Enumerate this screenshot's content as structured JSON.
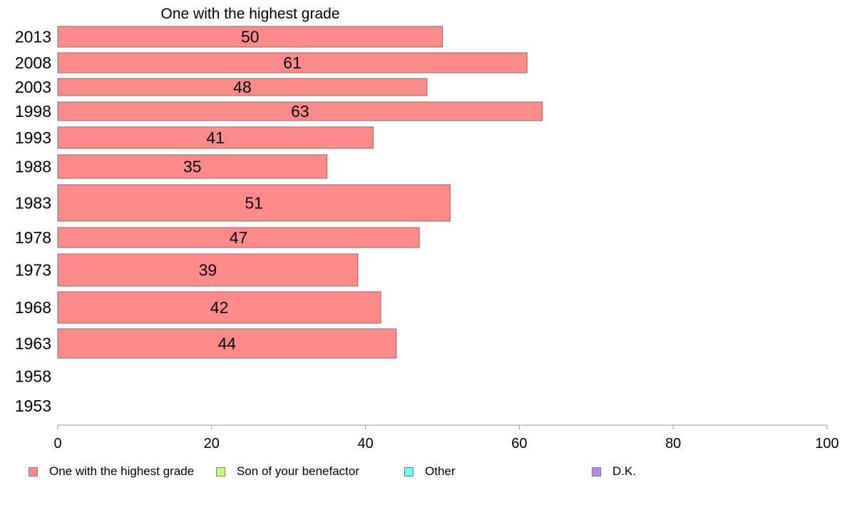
{
  "chart_data": {
    "type": "bar",
    "orientation": "horizontal",
    "series_title": "One with the highest grade",
    "categories": [
      "2013",
      "2008",
      "2003",
      "1998",
      "1993",
      "1988",
      "1983",
      "1978",
      "1973",
      "1968",
      "1963",
      "1958",
      "1953"
    ],
    "series": [
      {
        "name": "One with the highest grade",
        "color": "#ff8a8a",
        "values": [
          50,
          61,
          48,
          63,
          41,
          35,
          51,
          47,
          39,
          42,
          44,
          null,
          null
        ]
      }
    ],
    "xlim": [
      0,
      100
    ],
    "xticks": [
      "0",
      "20",
      "40",
      "60",
      "80",
      "100"
    ],
    "grid": false,
    "legend_position": "bottom",
    "legend": [
      {
        "label": "One with the highest grade",
        "color": "#ff8a8a"
      },
      {
        "label": "Son of your benefactor",
        "color": "#c6fa7c"
      },
      {
        "label": "Other",
        "color": "#7cf6f0"
      },
      {
        "label": "D.K.",
        "color": "#bb86fb"
      }
    ]
  }
}
